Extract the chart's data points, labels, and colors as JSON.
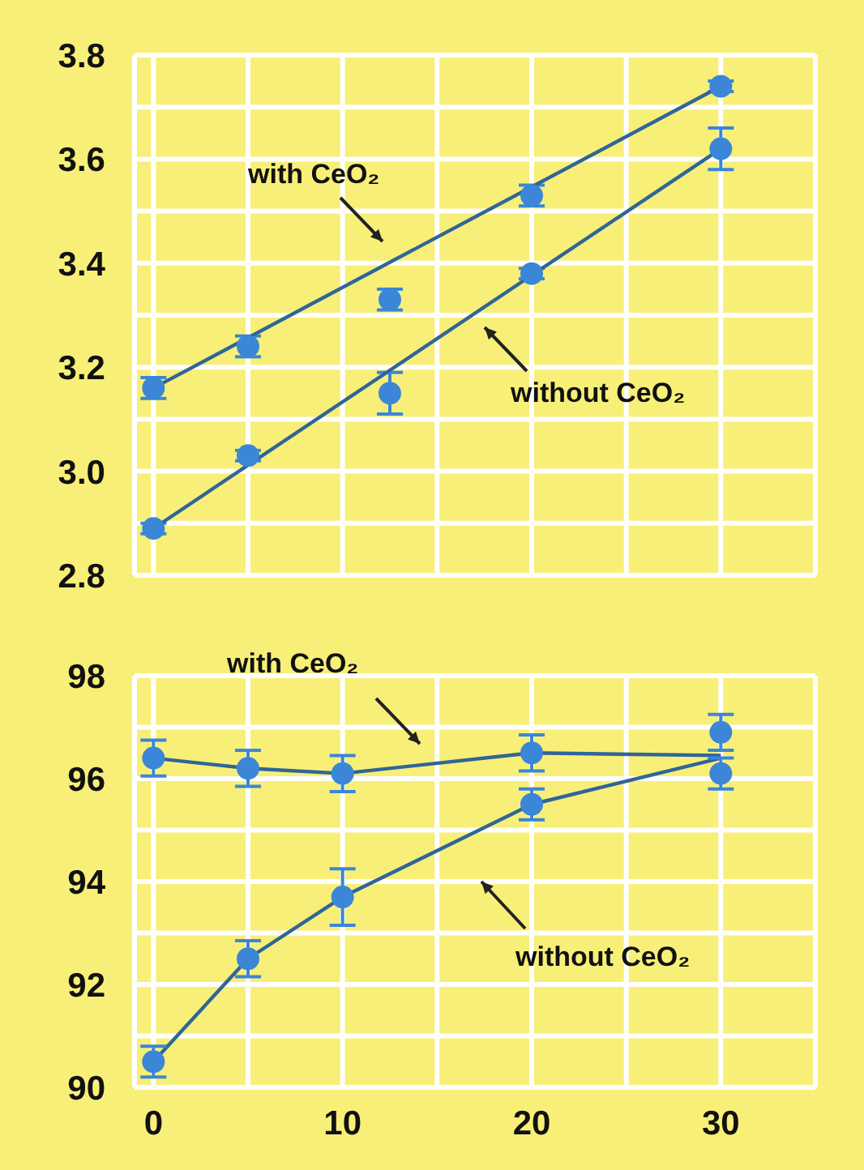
{
  "chart_data": [
    {
      "type": "scatter",
      "xlim": [
        -1,
        35
      ],
      "xticks": [
        {
          "value": 0,
          "label": null
        },
        {
          "value": 5,
          "label": null
        },
        {
          "value": 10,
          "label": null
        },
        {
          "value": 15,
          "label": null
        },
        {
          "value": 20,
          "label": null
        },
        {
          "value": 25,
          "label": null
        },
        {
          "value": 30,
          "label": null
        },
        {
          "value": 35,
          "label": null
        }
      ],
      "ylim": [
        2.8,
        3.8
      ],
      "yticks": [
        2.8,
        {
          "value": 2.9,
          "label": null
        },
        {
          "value": 3,
          "label": "3.0"
        },
        {
          "value": 3.1,
          "label": null
        },
        3.2,
        {
          "value": 3.3,
          "label": null
        },
        3.4,
        {
          "value": 3.5,
          "label": null
        },
        3.6,
        {
          "value": 3.7,
          "label": null
        },
        3.8
      ],
      "tick_labels": "y",
      "grid": true,
      "legend": false,
      "annotations": [
        "with CeO₂",
        "without CeO₂"
      ],
      "series": [
        {
          "marker": "circle",
          "color": "#3b86d6",
          "x": [
            0,
            5,
            12.5,
            20,
            30
          ],
          "values": [
            3.16,
            3.24,
            3.33,
            3.53,
            3.74
          ],
          "errors": [
            0.02,
            0.02,
            0.02,
            0.02,
            0.01
          ]
        },
        {
          "marker": "circle",
          "color": "#3b86d6",
          "x": [
            0,
            5,
            12.5,
            20,
            30
          ],
          "values": [
            2.89,
            3.03,
            3.15,
            3.38,
            3.62
          ],
          "errors": [
            0.01,
            0.01,
            0.04,
            0.01,
            0.04
          ]
        },
        {
          "type": "line",
          "marker": "none",
          "color": "#2f6598",
          "x": [
            0,
            30
          ],
          "values": [
            3.16,
            3.74
          ]
        },
        {
          "type": "line",
          "marker": "none",
          "color": "#2f6598",
          "x": [
            0,
            30
          ],
          "values": [
            2.89,
            3.62
          ]
        }
      ]
    },
    {
      "type": "line",
      "xlim": [
        -1,
        35
      ],
      "xticks": [
        0,
        {
          "value": 5,
          "label": null
        },
        10,
        {
          "value": 15,
          "label": null
        },
        20,
        {
          "value": 25,
          "label": null
        },
        30,
        {
          "value": 35,
          "label": null
        }
      ],
      "ylim": [
        90,
        98
      ],
      "yticks": [
        90,
        {
          "value": 91,
          "label": null
        },
        92,
        {
          "value": 93,
          "label": null
        },
        94,
        {
          "value": 95,
          "label": null
        },
        96,
        {
          "value": 97,
          "label": null
        },
        98
      ],
      "grid": true,
      "legend": false,
      "annotations": [
        "with CeO₂",
        "without CeO₂"
      ],
      "series": [
        {
          "marker": "none",
          "color": "#2f6598",
          "x": [
            0,
            5,
            10,
            20,
            30
          ],
          "values": [
            96.4,
            96.2,
            96.1,
            96.5,
            96.45
          ]
        },
        {
          "marker": "none",
          "color": "#2f6598",
          "x": [
            0,
            5,
            10,
            20,
            30
          ],
          "values": [
            90.5,
            92.5,
            93.7,
            95.5,
            96.4
          ]
        },
        {
          "type": "scatter",
          "marker": "circle",
          "color": "#3b86d6",
          "x": [
            0,
            5,
            10,
            20,
            30
          ],
          "values": [
            96.4,
            96.2,
            96.1,
            96.5,
            96.9
          ],
          "errors": [
            0.35,
            0.35,
            0.35,
            0.35,
            0.35
          ]
        },
        {
          "type": "scatter",
          "marker": "circle",
          "color": "#3b86d6",
          "x": [
            0,
            5,
            10,
            20,
            30
          ],
          "values": [
            90.5,
            92.5,
            93.7,
            95.5,
            96.1
          ],
          "errors": [
            0.3,
            0.35,
            0.55,
            0.3,
            0.3
          ]
        }
      ]
    }
  ]
}
